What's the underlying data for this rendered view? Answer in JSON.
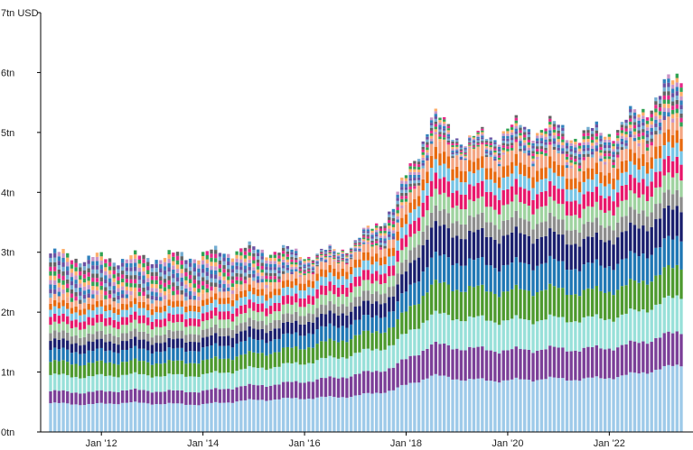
{
  "chart_data": {
    "type": "bar",
    "stacked": true,
    "title": "",
    "xlabel": "",
    "ylabel": "",
    "y_unit": "USD",
    "ylim": [
      0,
      7
    ],
    "y_ticks": [
      {
        "value": 0,
        "label": "0tn"
      },
      {
        "value": 1,
        "label": "1tn"
      },
      {
        "value": 2,
        "label": "2tn"
      },
      {
        "value": 3,
        "label": "3tn"
      },
      {
        "value": 4,
        "label": "4tn"
      },
      {
        "value": 5,
        "label": "5tn"
      },
      {
        "value": 6,
        "label": "6tn"
      },
      {
        "value": 7,
        "label": "7tn USD"
      }
    ],
    "x_ticks": [
      "Jan '12",
      "Jan '14",
      "Jan '16",
      "Jan '18",
      "Jan '20",
      "Jan '22"
    ],
    "x_start": "2011-01",
    "x_end": "2023-06",
    "grid": false,
    "legend": "none",
    "series_colors": [
      "#9ecae9",
      "#7b3f98",
      "#98e0d9",
      "#4d9a2f",
      "#1f77b4",
      "#1a1f6e",
      "#8d8d8d",
      "#9fd3a0",
      "#e8176b",
      "#77c5e6",
      "#e86a10",
      "#f4a582"
    ],
    "series_ranges": [
      {
        "color": "#9ecae9",
        "values": [
          0.48,
          0.46,
          0.49,
          0.47,
          0.46,
          0.52,
          0.55,
          0.57,
          0.6,
          0.7,
          0.94,
          0.87,
          0.86,
          0.89,
          0.88,
          0.93,
          1.12
        ]
      },
      {
        "color": "#7b3f98",
        "values": [
          0.2,
          0.2,
          0.21,
          0.21,
          0.22,
          0.24,
          0.25,
          0.3,
          0.35,
          0.38,
          0.52,
          0.52,
          0.5,
          0.5,
          0.5,
          0.5,
          0.55
        ]
      },
      {
        "color": "#98e0d9",
        "values": [
          0.27,
          0.26,
          0.26,
          0.26,
          0.27,
          0.28,
          0.3,
          0.32,
          0.35,
          0.38,
          0.5,
          0.5,
          0.5,
          0.5,
          0.5,
          0.5,
          0.6
        ]
      },
      {
        "color": "#4d9a2f",
        "values": [
          0.22,
          0.22,
          0.22,
          0.22,
          0.23,
          0.24,
          0.25,
          0.27,
          0.29,
          0.3,
          0.5,
          0.5,
          0.48,
          0.5,
          0.45,
          0.47,
          0.5
        ]
      },
      {
        "color": "#1f77b4",
        "values": [
          0.2,
          0.2,
          0.2,
          0.2,
          0.21,
          0.22,
          0.22,
          0.24,
          0.25,
          0.27,
          0.45,
          0.45,
          0.44,
          0.45,
          0.42,
          0.44,
          0.48
        ]
      },
      {
        "color": "#1a1f6e",
        "values": [
          0.15,
          0.15,
          0.15,
          0.15,
          0.16,
          0.17,
          0.18,
          0.2,
          0.22,
          0.25,
          0.5,
          0.45,
          0.5,
          0.45,
          0.42,
          0.45,
          0.5
        ]
      },
      {
        "color": "#8d8d8d",
        "values": [
          0.13,
          0.13,
          0.13,
          0.13,
          0.13,
          0.14,
          0.14,
          0.15,
          0.16,
          0.17,
          0.25,
          0.25,
          0.25,
          0.25,
          0.24,
          0.25,
          0.26
        ]
      },
      {
        "color": "#9fd3a0",
        "values": [
          0.14,
          0.14,
          0.14,
          0.14,
          0.14,
          0.15,
          0.15,
          0.16,
          0.17,
          0.18,
          0.27,
          0.26,
          0.26,
          0.26,
          0.25,
          0.26,
          0.28
        ]
      },
      {
        "color": "#e8176b",
        "values": [
          0.13,
          0.13,
          0.13,
          0.13,
          0.13,
          0.14,
          0.14,
          0.15,
          0.16,
          0.17,
          0.26,
          0.25,
          0.25,
          0.25,
          0.24,
          0.25,
          0.27
        ]
      },
      {
        "color": "#77c5e6",
        "values": [
          0.12,
          0.12,
          0.12,
          0.12,
          0.12,
          0.13,
          0.13,
          0.14,
          0.15,
          0.16,
          0.22,
          0.21,
          0.21,
          0.21,
          0.2,
          0.21,
          0.23
        ]
      },
      {
        "color": "#e86a10",
        "values": [
          0.1,
          0.1,
          0.1,
          0.1,
          0.1,
          0.11,
          0.11,
          0.12,
          0.13,
          0.14,
          0.2,
          0.19,
          0.19,
          0.19,
          0.18,
          0.19,
          0.21
        ]
      },
      {
        "color": "#f4a582",
        "values": [
          0.1,
          0.1,
          0.1,
          0.1,
          0.1,
          0.11,
          0.11,
          0.12,
          0.13,
          0.14,
          0.2,
          0.19,
          0.19,
          0.19,
          0.18,
          0.19,
          0.21
        ]
      }
    ],
    "series_range_dates": [
      "2011-01",
      "2011-10",
      "2012-07",
      "2013-04",
      "2014-01",
      "2014-10",
      "2015-07",
      "2016-04",
      "2017-01",
      "2017-10",
      "2018-07",
      "2019-04",
      "2020-01",
      "2020-10",
      "2021-07",
      "2022-04",
      "2023-06"
    ],
    "minor_segment_colors": [
      "#74add1",
      "#6a51a3",
      "#3182bd",
      "#c994c7",
      "#fdae6b",
      "#31a354",
      "#e7298a",
      "#636363"
    ],
    "totals": [
      2.98,
      2.9,
      2.9,
      2.93,
      2.96,
      3.05,
      3.03,
      2.95,
      3.15,
      3.75,
      5.25,
      4.85,
      5.05,
      5.1,
      4.95,
      5.1,
      5.95
    ]
  }
}
